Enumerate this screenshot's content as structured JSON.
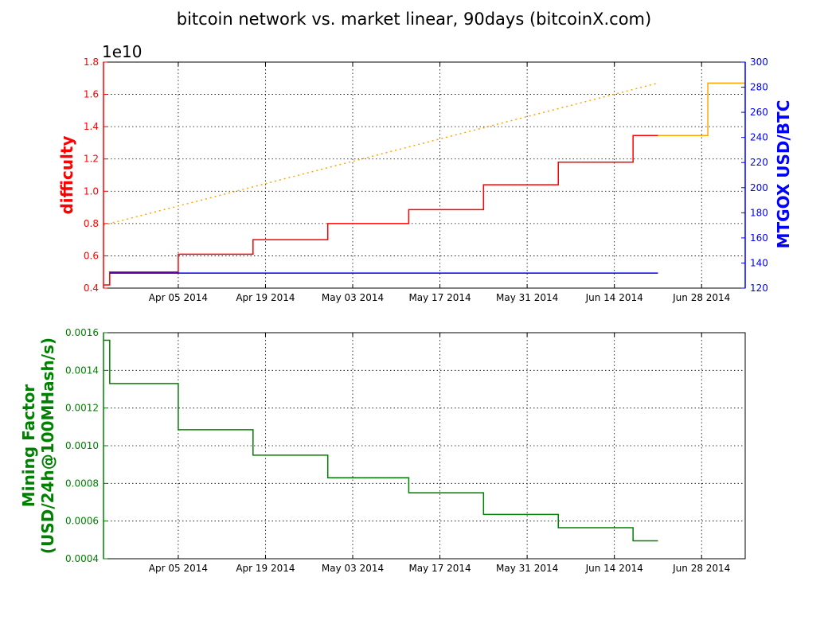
{
  "title": "bitcoin network vs. market linear, 90days (bitcoinX.com)",
  "colors": {
    "difficulty": "#ff0000",
    "difficulty_projection": "#ffa500",
    "price": "#0000ff",
    "mining_factor": "#008000",
    "axes": "#000000"
  },
  "chart_data": [
    {
      "type": "line",
      "panel": "top",
      "x_tick_labels": [
        "Apr 05 2014",
        "Apr 19 2014",
        "May 03 2014",
        "May 17 2014",
        "May 31 2014",
        "Jun 14 2014",
        "Jun 28 2014"
      ],
      "x_tick_dates": [
        "2014-04-05",
        "2014-04-19",
        "2014-05-03",
        "2014-05-17",
        "2014-05-31",
        "2014-06-14",
        "2014-06-28"
      ],
      "xlim": [
        "2014-03-24",
        "2014-07-05"
      ],
      "grid": true,
      "y_left": {
        "label": "difficulty",
        "multiplier": "1e10",
        "lim": [
          0.4,
          1.8
        ],
        "ticks": [
          "0.4",
          "0.6",
          "0.8",
          "1.0",
          "1.2",
          "1.4",
          "1.6",
          "1.8"
        ]
      },
      "y_right": {
        "label": "MTGOX USD/BTC",
        "lim": [
          120,
          300
        ],
        "ticks": [
          "120",
          "140",
          "160",
          "180",
          "200",
          "220",
          "240",
          "260",
          "280",
          "300"
        ]
      },
      "series": [
        {
          "axis": "left",
          "style": "step",
          "points": [
            [
              "2014-03-24",
              0.42
            ],
            [
              "2014-03-25",
              0.5
            ],
            [
              "2014-04-05",
              0.61
            ],
            [
              "2014-04-17",
              0.7
            ],
            [
              "2014-04-29",
              0.8
            ],
            [
              "2014-05-12",
              0.886
            ],
            [
              "2014-05-24",
              1.04
            ],
            [
              "2014-06-05",
              1.18
            ],
            [
              "2014-06-17",
              1.345
            ],
            [
              "2014-06-21",
              1.345
            ]
          ]
        },
        {
          "axis": "left",
          "style": "step",
          "points": [
            [
              "2014-06-21",
              1.345
            ],
            [
              "2014-06-28",
              1.345
            ],
            [
              "2014-06-29",
              1.67
            ],
            [
              "2014-07-05",
              1.67
            ]
          ]
        },
        {
          "axis": "left",
          "style": "dotted",
          "points": [
            [
              "2014-03-24",
              0.79
            ],
            [
              "2014-06-21",
              1.67
            ]
          ]
        },
        {
          "axis": "right",
          "style": "line",
          "points": [
            [
              "2014-03-25",
              132
            ],
            [
              "2014-06-21",
              132
            ]
          ]
        }
      ]
    },
    {
      "type": "line",
      "panel": "bottom",
      "x_tick_labels": [
        "Apr 05 2014",
        "Apr 19 2014",
        "May 03 2014",
        "May 17 2014",
        "May 31 2014",
        "Jun 14 2014",
        "Jun 28 2014"
      ],
      "x_tick_dates": [
        "2014-04-05",
        "2014-04-19",
        "2014-05-03",
        "2014-05-17",
        "2014-05-31",
        "2014-06-14",
        "2014-06-28"
      ],
      "xlim": [
        "2014-03-24",
        "2014-07-05"
      ],
      "grid": true,
      "y_left": {
        "label_line1": "Mining Factor",
        "label_line2": "(USD/24h@100MHash/s)",
        "lim": [
          0.0004,
          0.0016
        ],
        "ticks": [
          "0.0004",
          "0.0006",
          "0.0008",
          "0.0010",
          "0.0012",
          "0.0014",
          "0.0016"
        ]
      },
      "series": [
        {
          "axis": "left",
          "style": "step",
          "points": [
            [
              "2014-03-24",
              0.00156
            ],
            [
              "2014-03-25",
              0.00133
            ],
            [
              "2014-04-05",
              0.001085
            ],
            [
              "2014-04-17",
              0.00095
            ],
            [
              "2014-04-29",
              0.00083
            ],
            [
              "2014-05-12",
              0.00075
            ],
            [
              "2014-05-24",
              0.000635
            ],
            [
              "2014-06-05",
              0.000565
            ],
            [
              "2014-06-17",
              0.000495
            ],
            [
              "2014-06-21",
              0.000495
            ]
          ]
        }
      ]
    }
  ]
}
